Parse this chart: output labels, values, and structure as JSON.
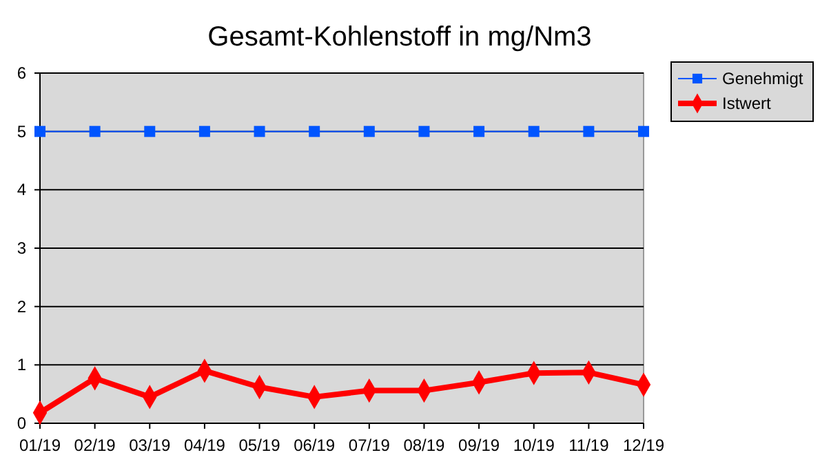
{
  "chart_data": {
    "type": "line",
    "title": "Gesamt-Kohlenstoff in mg/Nm3",
    "categories": [
      "01/19",
      "02/19",
      "03/19",
      "04/19",
      "05/19",
      "06/19",
      "07/19",
      "08/19",
      "09/19",
      "10/19",
      "11/19",
      "12/19"
    ],
    "series": [
      {
        "name": "Genehmigt",
        "color": "#0055ff",
        "marker": "square",
        "values": [
          5,
          5,
          5,
          5,
          5,
          5,
          5,
          5,
          5,
          5,
          5,
          5
        ]
      },
      {
        "name": "Istwert",
        "color": "#ff0000",
        "marker": "diamond",
        "values": [
          0.18,
          0.77,
          0.45,
          0.9,
          0.62,
          0.45,
          0.56,
          0.56,
          0.7,
          0.86,
          0.87,
          0.66
        ]
      }
    ],
    "ylim": [
      0,
      6
    ],
    "yticks": [
      0,
      1,
      2,
      3,
      4,
      5,
      6
    ],
    "grid": "y",
    "legend": "top right"
  }
}
